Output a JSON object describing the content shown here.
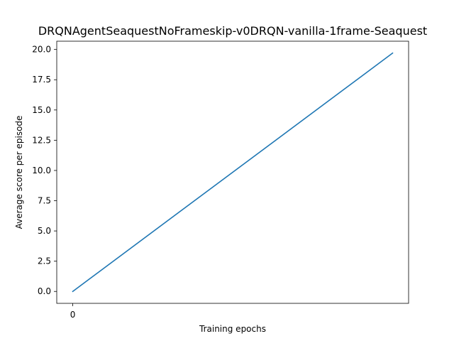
{
  "chart_data": {
    "type": "line",
    "title": "DRQNAgentSeaquestNoFrameskip-v0DRQN-vanilla-1frame-Seaquest",
    "xlabel": "Training epochs",
    "ylabel": "Average score per episode",
    "x_ticks": [
      0
    ],
    "y_ticks": [
      0.0,
      2.5,
      5.0,
      7.5,
      10.0,
      12.5,
      15.0,
      17.5,
      20.0
    ],
    "xlim": [
      -0.05,
      1.05
    ],
    "ylim": [
      -0.985,
      20.685
    ],
    "grid": false,
    "legend": "none",
    "series": [
      {
        "x": [
          0,
          1
        ],
        "values": [
          0.0,
          19.7
        ],
        "color": "#1f77b4"
      }
    ]
  }
}
